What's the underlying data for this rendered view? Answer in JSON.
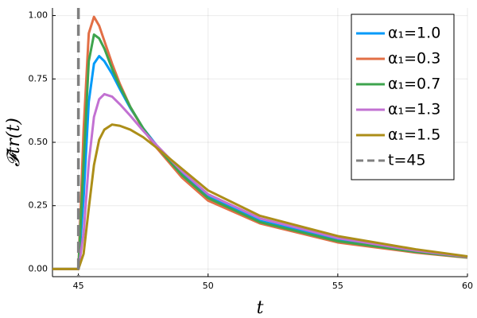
{
  "chart_data": {
    "type": "line",
    "xlabel": "t",
    "ylabel": "𝓕tr(t)",
    "x": [
      44,
      45,
      45.2,
      45.4,
      45.6,
      45.8,
      46,
      46.3,
      46.6,
      47,
      47.5,
      48,
      49,
      50,
      52,
      55,
      58,
      60
    ],
    "series": [
      {
        "name": "α₁=1.0",
        "color": "#009af9",
        "values": [
          0,
          0,
          0.28,
          0.66,
          0.81,
          0.84,
          0.82,
          0.77,
          0.71,
          0.635,
          0.555,
          0.49,
          0.375,
          0.285,
          0.19,
          0.115,
          0.07,
          0.047
        ]
      },
      {
        "name": "α₁=0.3",
        "color": "#e26f46",
        "values": [
          0,
          0,
          0.55,
          0.93,
          0.995,
          0.96,
          0.9,
          0.81,
          0.73,
          0.64,
          0.55,
          0.48,
          0.36,
          0.27,
          0.18,
          0.105,
          0.065,
          0.045
        ]
      },
      {
        "name": "α₁=0.7",
        "color": "#3ea44e",
        "values": [
          0,
          0,
          0.42,
          0.82,
          0.925,
          0.91,
          0.87,
          0.79,
          0.72,
          0.64,
          0.555,
          0.485,
          0.37,
          0.28,
          0.185,
          0.11,
          0.068,
          0.046
        ]
      },
      {
        "name": "α₁=1.3",
        "color": "#c271d2",
        "values": [
          0,
          0,
          0.14,
          0.42,
          0.6,
          0.67,
          0.69,
          0.68,
          0.65,
          0.605,
          0.545,
          0.49,
          0.385,
          0.295,
          0.2,
          0.122,
          0.073,
          0.048
        ]
      },
      {
        "name": "α₁=1.5",
        "color": "#ac8e18",
        "values": [
          0,
          0,
          0.06,
          0.24,
          0.41,
          0.51,
          0.55,
          0.57,
          0.565,
          0.55,
          0.52,
          0.48,
          0.395,
          0.31,
          0.21,
          0.13,
          0.078,
          0.05
        ]
      }
    ],
    "vline": {
      "name": "t=45",
      "x": 45,
      "color": "#808080"
    },
    "xlim": [
      44,
      60
    ],
    "xticks": [
      45,
      50,
      55,
      60
    ],
    "ylim": [
      -0.03,
      1.03
    ],
    "yticks": [
      {
        "value": 0,
        "label": "0.00"
      },
      {
        "value": 0.25,
        "label": "0.25"
      },
      {
        "value": 0.5,
        "label": "0.50"
      },
      {
        "value": 0.75,
        "label": "0.75"
      },
      {
        "value": 1,
        "label": "1.00"
      }
    ],
    "grid": true,
    "legend": "top-right"
  }
}
